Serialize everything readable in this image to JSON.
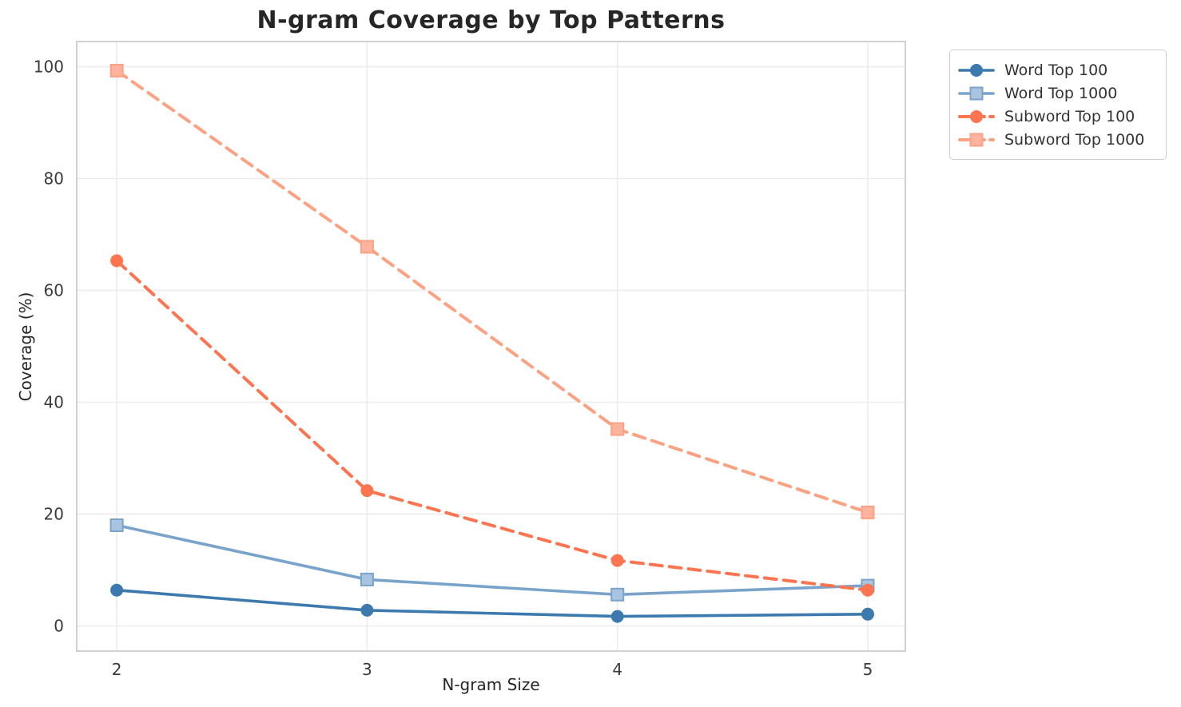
{
  "chart_data": {
    "type": "line",
    "title": "N-gram Coverage by Top Patterns",
    "xlabel": "N-gram Size",
    "ylabel": "Coverage (%)",
    "x": [
      2,
      3,
      4,
      5
    ],
    "x_ticks": [
      "2",
      "3",
      "4",
      "5"
    ],
    "y_ticks": [
      "0",
      "20",
      "40",
      "60",
      "80",
      "100"
    ],
    "y_tick_values": [
      0,
      20,
      40,
      60,
      80,
      100
    ],
    "xlim": [
      1.84,
      5.15
    ],
    "ylim": [
      -4.5,
      104.5
    ],
    "grid": true,
    "legend_position": "outside-top-right",
    "series": [
      {
        "name": "Word Top 100",
        "values": [
          6.4,
          2.8,
          1.7,
          2.1
        ],
        "color": "#3c79ae",
        "marker": "circle",
        "marker_fill": "#3c79ae",
        "dashed": false
      },
      {
        "name": "Word Top 1000",
        "values": [
          18.0,
          8.3,
          5.6,
          7.2
        ],
        "color": "#7aa3cc",
        "marker": "square",
        "marker_fill": "#a9c4de",
        "dashed": false
      },
      {
        "name": "Subword Top 100",
        "values": [
          65.3,
          24.2,
          11.7,
          6.4
        ],
        "color": "#fc7450",
        "marker": "circle",
        "marker_fill": "#fc7450",
        "dashed": true
      },
      {
        "name": "Subword Top 1000",
        "values": [
          99.3,
          67.8,
          35.2,
          20.3
        ],
        "color": "#fda183",
        "marker": "square",
        "marker_fill": "#fdb39d",
        "dashed": true
      }
    ],
    "style": {
      "grid_color": "#ececec",
      "spine_color": "#cccccc",
      "background": "#ffffff"
    }
  }
}
